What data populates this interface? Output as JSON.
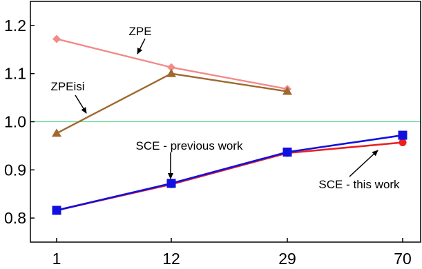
{
  "chart_data": {
    "type": "line",
    "title": "",
    "xlabel": "",
    "ylabel": "",
    "categories": [
      "1",
      "12",
      "29",
      "70"
    ],
    "ylim": [
      0.75,
      1.25
    ],
    "yticks": [
      0.8,
      0.9,
      1.0,
      1.1,
      1.2
    ],
    "yticklabels": [
      "0.8",
      "0.9",
      "1.0",
      "1.1",
      "1.2"
    ],
    "grid": false,
    "reference_line": {
      "y": 1.0,
      "color": "#5fd38d"
    },
    "series": [
      {
        "key": "zpe",
        "values": [
          1.172,
          1.113,
          1.068,
          null
        ],
        "color": "#f28a8a",
        "marker": "diamond"
      },
      {
        "key": "zpeisi",
        "values": [
          0.976,
          1.1,
          1.063,
          null
        ],
        "color": "#a0682f",
        "marker": "triangle"
      },
      {
        "key": "sce_this",
        "values": [
          0.816,
          0.87,
          0.935,
          0.957
        ],
        "color": "#e82020",
        "marker": "circle"
      },
      {
        "key": "sce_prev",
        "values": [
          0.816,
          0.872,
          0.937,
          0.972
        ],
        "color": "#1010e0",
        "marker": "square"
      }
    ],
    "annotations": [
      {
        "key": "zpe",
        "text": "ZPE"
      },
      {
        "key": "zpeisi",
        "text": "ZPEisi"
      },
      {
        "key": "sce_prev",
        "text": "SCE - previous work"
      },
      {
        "key": "sce_this",
        "text": "SCE - this work"
      }
    ]
  }
}
